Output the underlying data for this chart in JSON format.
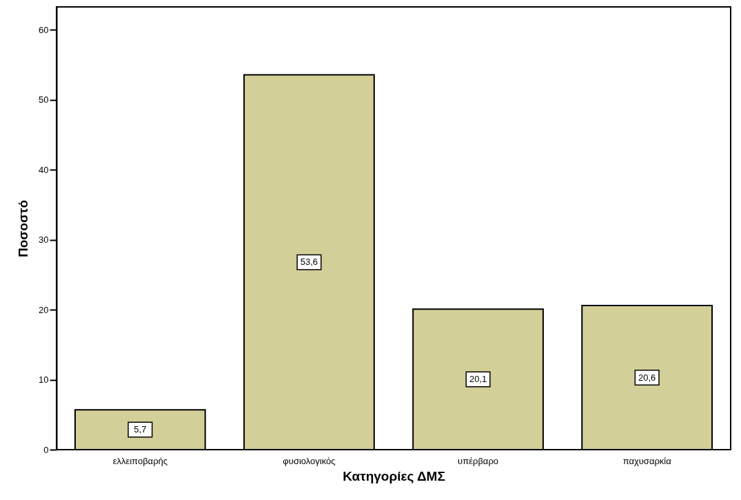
{
  "chart_data": {
    "type": "bar",
    "xlabel": "Κατηγορίες ΔΜΣ",
    "ylabel": "Ποσοστό",
    "categories": [
      "ελλειποβαρής",
      "φυσιολογικός",
      "υπέρβαρο",
      "παχυσαρκία"
    ],
    "values": [
      5.7,
      53.6,
      20.1,
      20.6
    ],
    "value_labels": [
      "5,7",
      "53,6",
      "20,1",
      "20,6"
    ],
    "color": "#d3cf98",
    "ylim": [
      0,
      63.3
    ],
    "yticks": [
      0,
      10,
      20,
      30,
      40,
      50,
      60
    ],
    "grid": false
  }
}
